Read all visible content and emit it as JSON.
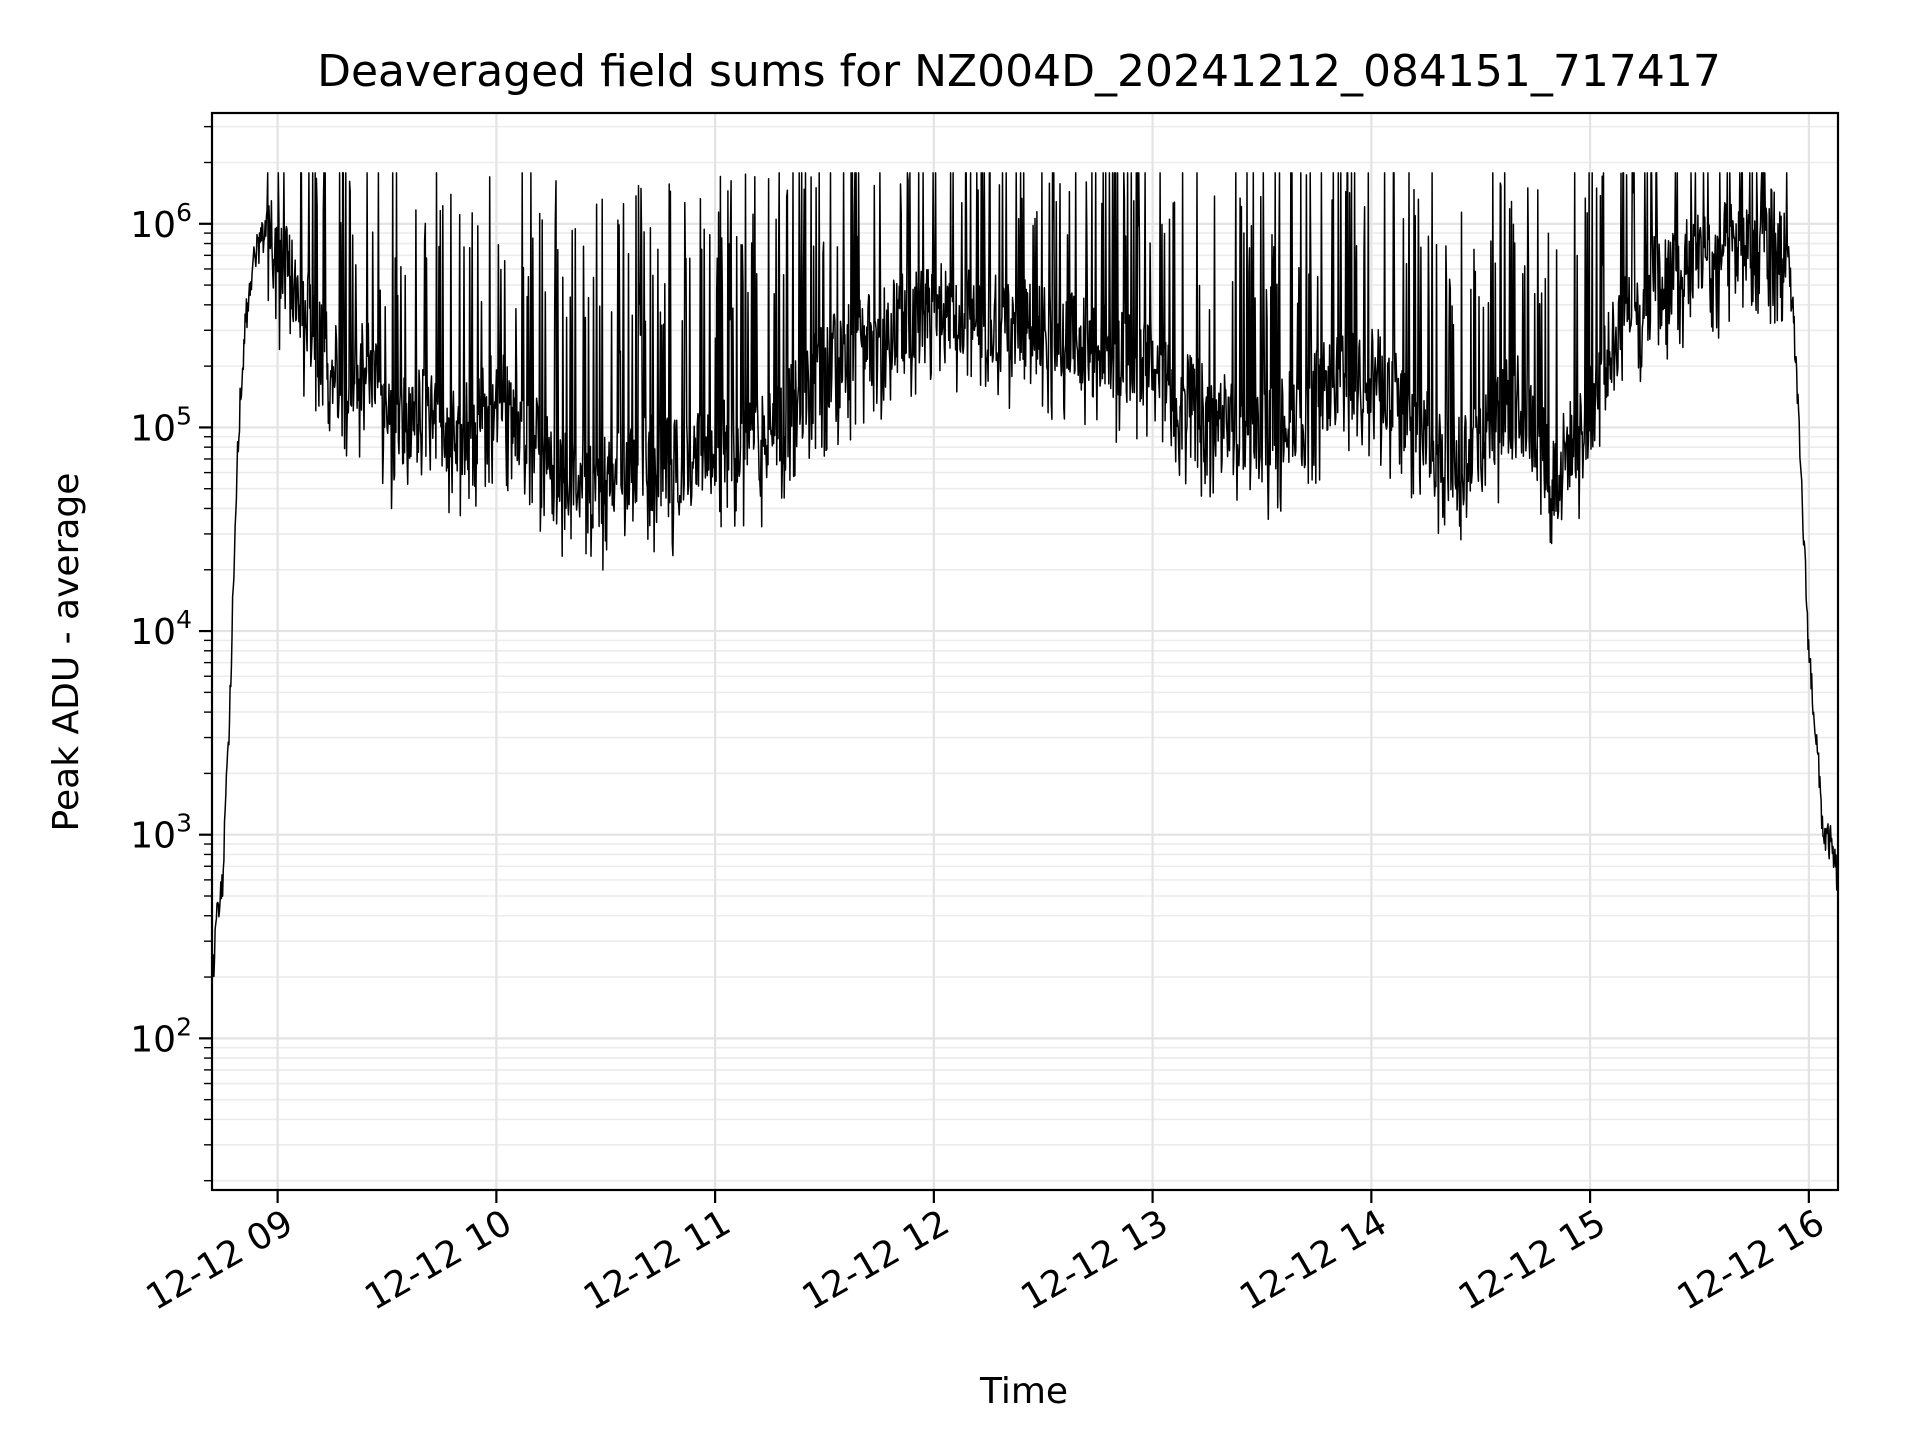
{
  "chart_data": {
    "type": "line",
    "title": "Deaveraged field sums for NZ004D_20241212_084151_717417",
    "xlabel": "Time",
    "ylabel": "Peak ADU - average",
    "x_scale": "time",
    "y_scale": "log",
    "xlim": [
      "2024-12-12 08:42",
      "2024-12-12 16:08"
    ],
    "ylim": [
      18,
      3500000
    ],
    "grid": true,
    "line_color": "#000000",
    "x_ticks": [
      "2024-12-12 09:00",
      "2024-12-12 10:00",
      "2024-12-12 11:00",
      "2024-12-12 12:00",
      "2024-12-12 13:00",
      "2024-12-12 14:00",
      "2024-12-12 15:00",
      "2024-12-12 16:00"
    ],
    "x_tick_labels": [
      "12-12 09",
      "12-12 10",
      "12-12 11",
      "12-12 12",
      "12-12 13",
      "12-12 14",
      "12-12 15",
      "12-12 16"
    ],
    "y_ticks": [
      100,
      1000,
      10000,
      100000,
      1000000
    ],
    "y_tick_labels": [
      {
        "base": "10",
        "exp": "2"
      },
      {
        "base": "10",
        "exp": "3"
      },
      {
        "base": "10",
        "exp": "4"
      },
      {
        "base": "10",
        "exp": "5"
      },
      {
        "base": "10",
        "exp": "6"
      }
    ],
    "series": [
      {
        "x": [
          "2024-12-12 08:42",
          "2024-12-12 08:43",
          "2024-12-12 08:45",
          "2024-12-12 08:47",
          "2024-12-12 08:49",
          "2024-12-12 08:51",
          "2024-12-12 08:53",
          "2024-12-12 08:55",
          "2024-12-12 08:57",
          "2024-12-12 09:00",
          "2024-12-12 09:02",
          "2024-12-12 09:05",
          "2024-12-12 09:10",
          "2024-12-12 09:15",
          "2024-12-12 09:20",
          "2024-12-12 09:25",
          "2024-12-12 09:30",
          "2024-12-12 09:40",
          "2024-12-12 09:50",
          "2024-12-12 10:00",
          "2024-12-12 10:10",
          "2024-12-12 10:20",
          "2024-12-12 10:30",
          "2024-12-12 10:40",
          "2024-12-12 10:50",
          "2024-12-12 11:00",
          "2024-12-12 11:15",
          "2024-12-12 11:30",
          "2024-12-12 11:45",
          "2024-12-12 12:00",
          "2024-12-12 12:15",
          "2024-12-12 12:30",
          "2024-12-12 12:45",
          "2024-12-12 13:00",
          "2024-12-12 13:15",
          "2024-12-12 13:30",
          "2024-12-12 13:45",
          "2024-12-12 14:00",
          "2024-12-12 14:10",
          "2024-12-12 14:20",
          "2024-12-12 14:30",
          "2024-12-12 14:40",
          "2024-12-12 14:50",
          "2024-12-12 15:00",
          "2024-12-12 15:10",
          "2024-12-12 15:20",
          "2024-12-12 15:30",
          "2024-12-12 15:40",
          "2024-12-12 15:50",
          "2024-12-12 15:54",
          "2024-12-12 15:56",
          "2024-12-12 15:58",
          "2024-12-12 16:00",
          "2024-12-12 16:02",
          "2024-12-12 16:04",
          "2024-12-12 16:06",
          "2024-12-12 16:08"
        ],
        "values": [
          170,
          350,
          600,
          5000,
          80000,
          300000,
          600000,
          800000,
          900000,
          700000,
          600000,
          500000,
          300000,
          200000,
          150000,
          250000,
          100000,
          120000,
          90000,
          150000,
          90000,
          60000,
          55000,
          70000,
          65000,
          80000,
          90000,
          200000,
          300000,
          400000,
          350000,
          300000,
          250000,
          200000,
          120000,
          90000,
          150000,
          200000,
          120000,
          70000,
          90000,
          150000,
          60000,
          120000,
          400000,
          600000,
          700000,
          800000,
          900000,
          800000,
          300000,
          50000,
          8000,
          3000,
          1000,
          900,
          600
        ]
      }
    ]
  }
}
